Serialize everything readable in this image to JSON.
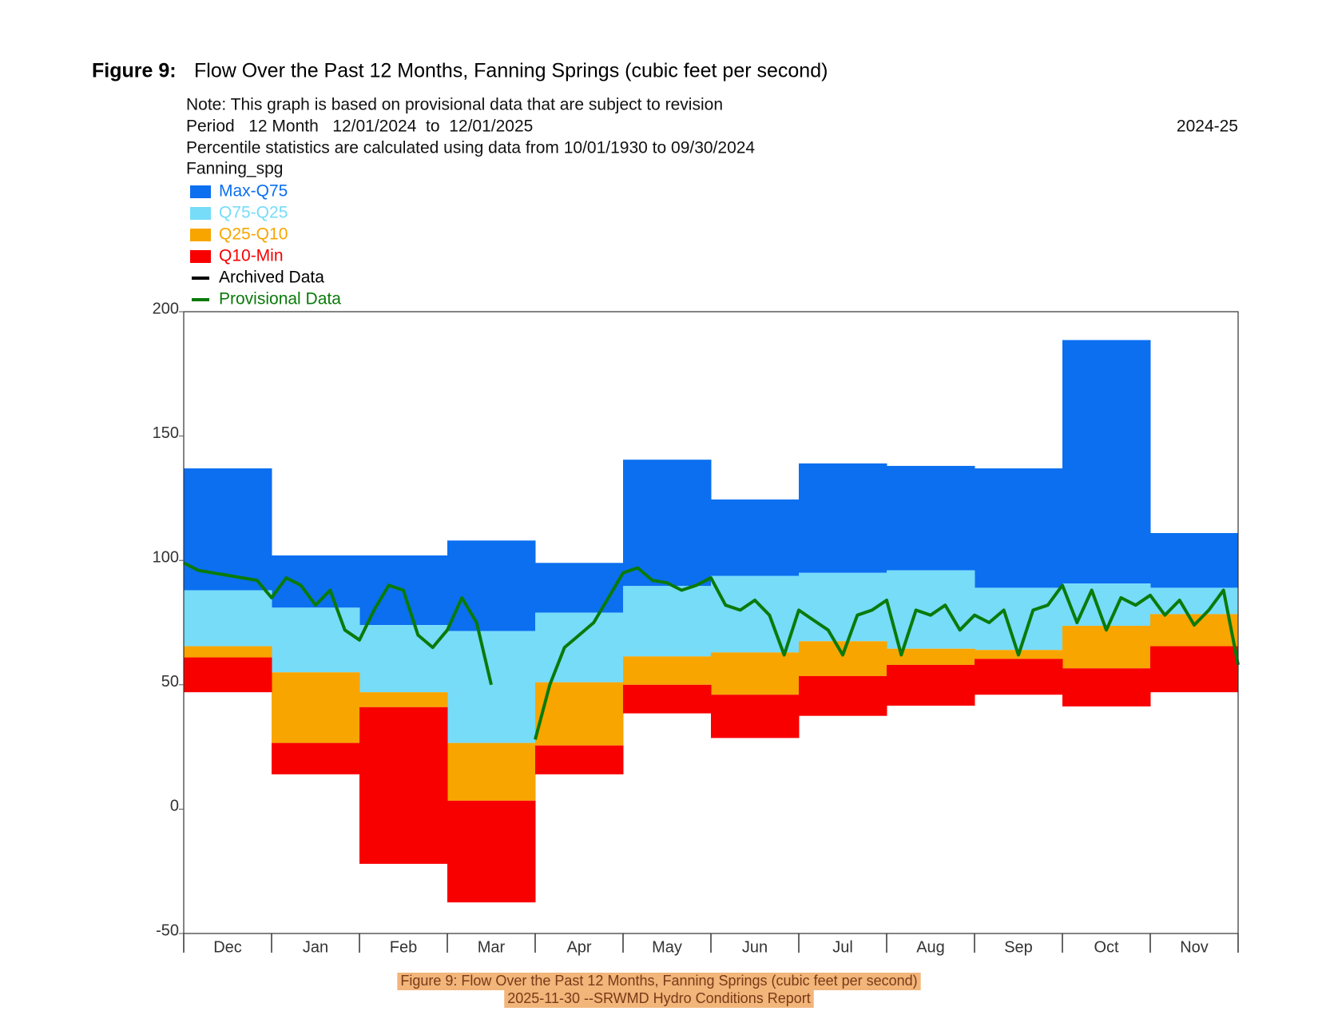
{
  "figure_label": "Figure 9:",
  "chart_data": {
    "type": "percentile-bands",
    "title": "Flow Over the Past 12 Months, Fanning Springs (cubic feet per second)",
    "notes": [
      "Note: This graph is based on provisional data that are subject to revision",
      "Period   12 Month   12/01/2024  to  12/01/2025",
      "Percentile statistics are calculated using data from 10/01/1930 to 09/30/2024"
    ],
    "water_year": "2024-25",
    "station": "Fanning_spg",
    "categories": [
      "Dec",
      "Jan",
      "Feb",
      "Mar",
      "Apr",
      "May",
      "Jun",
      "Jul",
      "Aug",
      "Sep",
      "Oct",
      "Nov"
    ],
    "series": [
      {
        "name": "Max-Q75",
        "color": "#0b6ff0",
        "upper": [
          137,
          102,
          102,
          108,
          99,
          140.5,
          124.5,
          139,
          138,
          137,
          188.6,
          111
        ]
      },
      {
        "name": "Q75-Q25",
        "color": "#76dcf8",
        "upper": [
          88,
          81,
          74,
          71.6,
          79,
          89.7,
          93.8,
          95,
          96,
          89,
          90.7,
          89
        ]
      },
      {
        "name": "Q25-Q10",
        "color": "#f8a500",
        "upper": [
          65.5,
          55,
          47,
          26.6,
          51,
          61.4,
          63,
          67.5,
          64.5,
          64,
          73.7,
          78.4
        ]
      },
      {
        "name": "Q10-Min",
        "color": "#f80000",
        "upper": [
          61,
          26.6,
          41,
          3.4,
          25.6,
          50,
          46,
          53.5,
          58,
          60.4,
          56.6,
          65.5
        ],
        "lower": [
          47,
          14,
          -22,
          -37.5,
          14,
          38.5,
          28.6,
          37.5,
          41.6,
          46,
          41.3,
          47
        ]
      }
    ],
    "lines": [
      {
        "name": "Archived Data",
        "color": "#000000",
        "values": []
      },
      {
        "name": "Provisional Data",
        "color": "#0a7a0a",
        "values": [
          99,
          96,
          95,
          94,
          93,
          92,
          85,
          93,
          90,
          82,
          88,
          72,
          68,
          80,
          90,
          88,
          70,
          65,
          72,
          85,
          75,
          50,
          null,
          null,
          28,
          50,
          65,
          70,
          75,
          85,
          95,
          97,
          92,
          91,
          88,
          90,
          93,
          82,
          80,
          84,
          78,
          62,
          80,
          76,
          72,
          62,
          78,
          80,
          84,
          62,
          80,
          78,
          82,
          72,
          78,
          75,
          80,
          62,
          80,
          82,
          90,
          75,
          88,
          72,
          85,
          82,
          86,
          78,
          84,
          74,
          80,
          88,
          58
        ]
      }
    ],
    "ylim": [
      -50,
      200
    ],
    "yticks": [
      -50,
      0,
      50,
      100,
      150,
      200
    ]
  },
  "caption": [
    "Figure 9: Flow Over the Past 12 Months, Fanning Springs (cubic feet per second)",
    "2025-11-30 --SRWMD Hydro Conditions Report"
  ]
}
